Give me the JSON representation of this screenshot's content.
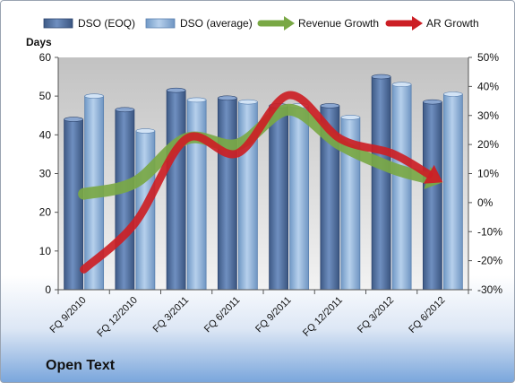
{
  "company": "Open Text",
  "chart_data": {
    "type": "bar",
    "categories": [
      "FQ 9/2010",
      "FQ 12/2010",
      "FQ 3/2011",
      "FQ 6/2011",
      "FQ 9/2011",
      "FQ 12/2011",
      "FQ 3/2012",
      "FQ 6/2012"
    ],
    "ylabel": "Days",
    "ylim": [
      0,
      60
    ],
    "yticks": [
      0,
      10,
      20,
      30,
      40,
      50,
      60
    ],
    "y2lim": [
      -30,
      50
    ],
    "y2ticks": [
      "-30%",
      "-20%",
      "-10%",
      "0%",
      "10%",
      "20%",
      "30%",
      "40%",
      "50%"
    ],
    "grid": false,
    "legend_position": "top",
    "series": [
      {
        "name": "DSO (EOQ)",
        "kind": "bar",
        "color": "#4f6d9c",
        "values": [
          44,
          46.5,
          51.5,
          49.5,
          47.5,
          47.5,
          55,
          48.5
        ]
      },
      {
        "name": "DSO (average)",
        "kind": "bar",
        "color": "#8fb3dc",
        "values": [
          50,
          41,
          49,
          48.5,
          47.5,
          44.5,
          53,
          50.5
        ]
      },
      {
        "name": "Revenue Growth",
        "kind": "arrow-line",
        "axis": "right",
        "color": "#79a845",
        "values": [
          3,
          7,
          22,
          20,
          32,
          20,
          12,
          7
        ]
      },
      {
        "name": "AR Growth",
        "kind": "arrow-line",
        "axis": "right",
        "color": "#cc1f25",
        "values": [
          -23,
          -7,
          22,
          17,
          37,
          22,
          17,
          7
        ]
      }
    ]
  }
}
